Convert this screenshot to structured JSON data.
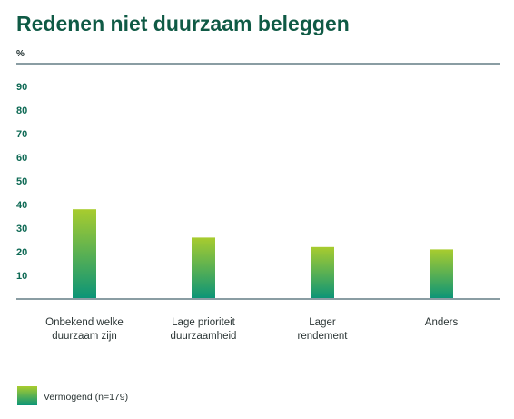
{
  "chart_data": {
    "type": "bar",
    "title": "Redenen niet duurzaam beleggen",
    "unit_label": "%",
    "xlabel": "",
    "ylabel": "%",
    "ylim": [
      0,
      90
    ],
    "yticks": [
      10,
      20,
      30,
      40,
      50,
      60,
      70,
      80,
      90
    ],
    "categories": [
      [
        "Onbekend welke",
        "duurzaam zijn"
      ],
      [
        "Lage prioriteit",
        "duurzaamheid"
      ],
      [
        "Lager",
        "rendement"
      ],
      [
        "Anders"
      ]
    ],
    "series": [
      {
        "name": "Vermogend (n=179)",
        "values": [
          38,
          26,
          22,
          21
        ]
      }
    ],
    "grid": false,
    "legend_position": "bottom-left",
    "colors": {
      "title": "#0f5a45",
      "bar_top": "#a8cc2e",
      "bar_bottom": "#0a9478",
      "axis": "#8a9da3",
      "ytick": "#0f6a55"
    }
  }
}
